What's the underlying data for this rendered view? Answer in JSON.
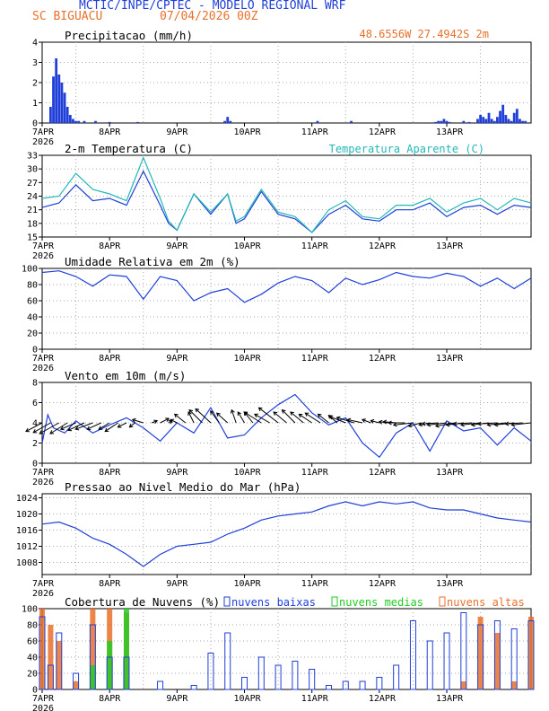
{
  "header": {
    "title": "MCTIC/INPE/CPTEC - MODELO REGIONAL WRF",
    "station": "SC BIGUACU",
    "run": "07/04/2026 00Z",
    "location": "48.6556W 27.4942S 2m"
  },
  "colors": {
    "blue": "#1f3fd8",
    "cyan": "#22b8b8",
    "orange": "#e8702a",
    "green": "#22cc22",
    "grid": "#aaaaaa"
  },
  "x_axis": {
    "year_label": "2026",
    "day_labels": [
      "7APR",
      "8APR",
      "9APR",
      "10APR",
      "11APR",
      "12APR",
      "13APR"
    ]
  },
  "chart_data": [
    {
      "type": "bar",
      "title": "Precipitacao (mm/h)",
      "ylim": [
        0,
        4
      ],
      "yticks": [
        0,
        1,
        2,
        3,
        4
      ],
      "x": [
        3,
        4,
        5,
        6,
        7,
        8,
        9,
        10,
        11,
        12,
        13,
        15,
        19,
        24,
        34,
        65,
        66,
        67,
        98,
        110,
        140,
        141,
        142,
        143,
        144,
        145,
        150,
        152,
        155,
        156,
        157,
        158,
        159,
        160,
        161,
        162,
        163,
        164,
        165,
        166,
        167,
        168,
        169,
        170,
        171,
        172
      ],
      "values": [
        0.8,
        2.3,
        3.2,
        2.4,
        2.0,
        1.5,
        0.8,
        0.4,
        0.2,
        0.1,
        0.1,
        0.1,
        0.1,
        0.05,
        0.05,
        0.1,
        0.3,
        0.1,
        0.1,
        0.1,
        0.05,
        0.1,
        0.1,
        0.2,
        0.1,
        0.05,
        0.1,
        0.05,
        0.2,
        0.4,
        0.3,
        0.2,
        0.5,
        0.2,
        0.1,
        0.3,
        0.6,
        0.9,
        0.4,
        0.2,
        0.1,
        0.5,
        0.7,
        0.2,
        0.1,
        0.1
      ]
    },
    {
      "type": "line",
      "title": "2-m Temperatura (C)",
      "ylim": [
        15,
        33
      ],
      "yticks": [
        15,
        18,
        21,
        24,
        27,
        30,
        33
      ],
      "series": [
        {
          "name": "2-m Temperatura (C)",
          "color": "#1f3fd8",
          "x": [
            0,
            6,
            12,
            18,
            24,
            30,
            36,
            42,
            45,
            48,
            54,
            60,
            66,
            69,
            72,
            78,
            84,
            90,
            96,
            102,
            108,
            114,
            120,
            126,
            132,
            138,
            144,
            150,
            156,
            162,
            168,
            174
          ],
          "values": [
            21.5,
            22.5,
            26.5,
            23,
            23.5,
            22,
            29.5,
            22,
            18,
            16.5,
            24.5,
            20,
            24.5,
            18,
            19,
            25,
            20,
            19,
            16,
            20,
            22,
            19,
            18.5,
            21,
            21,
            22.5,
            19.5,
            21.5,
            22,
            20,
            22,
            21.5
          ]
        },
        {
          "name": "Temperatura Aparente (C)",
          "color": "#22b8b8",
          "x": [
            0,
            6,
            12,
            18,
            24,
            30,
            36,
            42,
            45,
            48,
            54,
            60,
            66,
            69,
            72,
            78,
            84,
            90,
            96,
            102,
            108,
            114,
            120,
            126,
            132,
            138,
            144,
            150,
            156,
            162,
            168,
            174
          ],
          "values": [
            23.5,
            24,
            29,
            25.5,
            24.5,
            23,
            32.5,
            23.5,
            18.5,
            16.5,
            24.5,
            20.5,
            24.5,
            18.5,
            19.5,
            25.5,
            20.5,
            19.5,
            16,
            21,
            23,
            19.5,
            19,
            22,
            22,
            23.5,
            20.5,
            22.5,
            23.5,
            21,
            23.5,
            22.5
          ]
        }
      ],
      "legend": "top-right"
    },
    {
      "type": "line",
      "title": "Umidade Relativa em 2m (%)",
      "ylim": [
        0,
        100
      ],
      "yticks": [
        0,
        20,
        40,
        60,
        80,
        100
      ],
      "series": [
        {
          "name": "Umidade Relativa em 2m (%)",
          "color": "#1f3fd8",
          "x": [
            0,
            6,
            12,
            18,
            24,
            30,
            36,
            42,
            48,
            54,
            60,
            66,
            72,
            78,
            84,
            90,
            96,
            102,
            108,
            114,
            120,
            126,
            132,
            138,
            144,
            150,
            156,
            162,
            168,
            174
          ],
          "values": [
            95,
            97,
            90,
            78,
            92,
            90,
            62,
            90,
            85,
            60,
            70,
            75,
            58,
            68,
            82,
            90,
            85,
            70,
            88,
            80,
            86,
            95,
            90,
            88,
            94,
            90,
            78,
            88,
            75,
            88
          ]
        }
      ]
    },
    {
      "type": "line",
      "title": "Vento em 10m (m/s)",
      "ylim": [
        0,
        8
      ],
      "yticks": [
        0,
        2,
        4,
        6,
        8
      ],
      "series": [
        {
          "name": "Vento em 10m (m/s)",
          "color": "#1f3fd8",
          "x": [
            0,
            2,
            4,
            8,
            12,
            18,
            24,
            30,
            36,
            42,
            48,
            54,
            60,
            66,
            72,
            78,
            84,
            90,
            96,
            102,
            108,
            114,
            120,
            126,
            132,
            138,
            144,
            150,
            156,
            162,
            168,
            174
          ],
          "values": [
            2.0,
            4.8,
            3.5,
            3.0,
            4.2,
            3.0,
            3.8,
            4.5,
            3.5,
            2.2,
            4.0,
            3.0,
            5.5,
            2.5,
            2.8,
            4.5,
            5.8,
            6.8,
            5.0,
            3.8,
            4.5,
            2.0,
            0.6,
            3.0,
            4.0,
            1.2,
            4.2,
            3.2,
            3.5,
            1.8,
            3.5,
            2.2
          ]
        }
      ],
      "vectors": {
        "x": [
          0,
          3,
          6,
          9,
          12,
          15,
          18,
          21,
          24,
          27,
          30,
          33,
          36,
          39,
          42,
          45,
          48,
          51,
          54,
          57,
          60,
          63,
          66,
          69,
          72,
          75,
          78,
          81,
          84,
          87,
          90,
          93,
          96,
          99,
          102,
          105,
          108,
          111,
          114,
          117,
          120,
          123,
          126,
          129,
          132,
          135,
          138,
          141,
          144,
          147,
          150,
          153,
          156,
          159,
          162,
          165,
          168,
          171,
          174
        ],
        "u": [
          -1.5,
          -1.6,
          -1.8,
          -1.6,
          -1.4,
          -1.5,
          -1.6,
          -1.3,
          -1.0,
          -1.2,
          -0.8,
          -0.5,
          -1.0,
          0.5,
          0.8,
          0.3,
          -0.6,
          -1.0,
          -0.5,
          -1.2,
          -1.4,
          -0.8,
          -1.0,
          -0.4,
          -0.6,
          -0.8,
          -1.6,
          -1.4,
          -1.8,
          -1.2,
          -1.2,
          -1.2,
          -1.2,
          -1.4,
          -1.0,
          -0.8,
          -1.5,
          -1.6,
          -1.4,
          -0.8,
          -0.8,
          -0.8,
          -1.2,
          -1.5,
          -1.8,
          -1.2,
          -1.0,
          -1.5,
          -1.8,
          -1.8,
          -1.6,
          -1.7,
          -1.8,
          -1.6,
          -1.8,
          -1.7,
          -1.8,
          -1.6,
          -1.8
        ],
        "v": [
          -0.8,
          -0.9,
          -1.0,
          -1.0,
          -0.6,
          -0.7,
          -0.6,
          -0.6,
          -0.6,
          -0.8,
          -0.4,
          -0.4,
          0.3,
          0.2,
          0.4,
          0.2,
          0.3,
          0.8,
          1.0,
          1.2,
          1.3,
          1.1,
          0.9,
          1.2,
          1.0,
          1.0,
          1.0,
          0.8,
          1.4,
          1.0,
          1.2,
          1.0,
          0.8,
          0.9,
          0.8,
          0.7,
          0.6,
          0.5,
          0.3,
          0.3,
          0.2,
          0.1,
          0.1,
          0.0,
          -0.2,
          -0.3,
          -0.2,
          -0.1,
          -0.2,
          -0.3,
          -0.2,
          -0.1,
          -0.2,
          -0.2,
          -0.1,
          -0.2,
          -0.2,
          -0.1,
          -0.2
        ]
      }
    },
    {
      "type": "line",
      "title": "Pressao ao Nivel Medio do Mar (hPa)",
      "ylim": [
        1005,
        1025
      ],
      "yticks": [
        1008,
        1012,
        1016,
        1020,
        1024
      ],
      "series": [
        {
          "name": "Pressao ao Nivel Medio do Mar (hPa)",
          "color": "#1f3fd8",
          "x": [
            0,
            6,
            12,
            18,
            24,
            30,
            36,
            42,
            48,
            54,
            60,
            66,
            72,
            78,
            84,
            90,
            96,
            102,
            108,
            114,
            120,
            126,
            132,
            138,
            144,
            150,
            156,
            162,
            168,
            174
          ],
          "values": [
            1017.5,
            1018,
            1016.5,
            1014,
            1012.5,
            1010,
            1007,
            1010,
            1012,
            1012.5,
            1013,
            1015,
            1016.5,
            1018.5,
            1019.5,
            1020,
            1020.5,
            1022,
            1023,
            1022,
            1023,
            1022.5,
            1023,
            1021.5,
            1021,
            1021,
            1020,
            1019,
            1018.5,
            1018
          ]
        }
      ]
    },
    {
      "type": "bar",
      "title": "Cobertura de Nuvens (%)",
      "ylim": [
        0,
        100
      ],
      "yticks": [
        0,
        20,
        40,
        60,
        80,
        100
      ],
      "series": [
        {
          "name": "nuvens baixas",
          "color": "#1f3fd8",
          "x": [
            0,
            3,
            6,
            12,
            18,
            24,
            30,
            36,
            42,
            48,
            54,
            60,
            66,
            72,
            78,
            84,
            90,
            96,
            102,
            108,
            114,
            120,
            126,
            132,
            138,
            144,
            150,
            156,
            162,
            168,
            174
          ],
          "values": [
            90,
            30,
            70,
            20,
            80,
            40,
            40,
            0,
            10,
            0,
            5,
            45,
            70,
            15,
            40,
            30,
            35,
            25,
            5,
            10,
            10,
            15,
            30,
            85,
            60,
            70,
            95,
            80,
            85,
            75,
            85
          ]
        },
        {
          "name": "nuvens medias",
          "color": "#22cc22",
          "x": [
            0,
            3,
            6,
            12,
            18,
            24,
            30,
            36,
            42,
            48,
            54,
            60,
            66,
            72,
            78,
            84,
            90,
            96,
            102,
            108,
            114,
            120,
            126,
            132,
            138,
            144,
            150,
            156,
            162,
            168,
            174
          ],
          "values": [
            0,
            0,
            0,
            0,
            30,
            60,
            100,
            0,
            0,
            0,
            0,
            0,
            0,
            0,
            0,
            0,
            0,
            0,
            0,
            0,
            0,
            0,
            0,
            0,
            0,
            0,
            0,
            0,
            0,
            0,
            0
          ]
        },
        {
          "name": "nuvens altas",
          "color": "#e8702a",
          "x": [
            0,
            3,
            6,
            12,
            18,
            24,
            30,
            36,
            42,
            48,
            54,
            60,
            66,
            72,
            78,
            84,
            90,
            96,
            102,
            108,
            114,
            120,
            126,
            132,
            138,
            144,
            150,
            156,
            162,
            168,
            174
          ],
          "values": [
            100,
            80,
            60,
            10,
            100,
            100,
            95,
            0,
            0,
            0,
            0,
            0,
            0,
            0,
            0,
            0,
            0,
            0,
            0,
            0,
            0,
            0,
            0,
            0,
            0,
            0,
            10,
            90,
            70,
            10,
            90
          ]
        }
      ],
      "legend": "top-right"
    }
  ]
}
